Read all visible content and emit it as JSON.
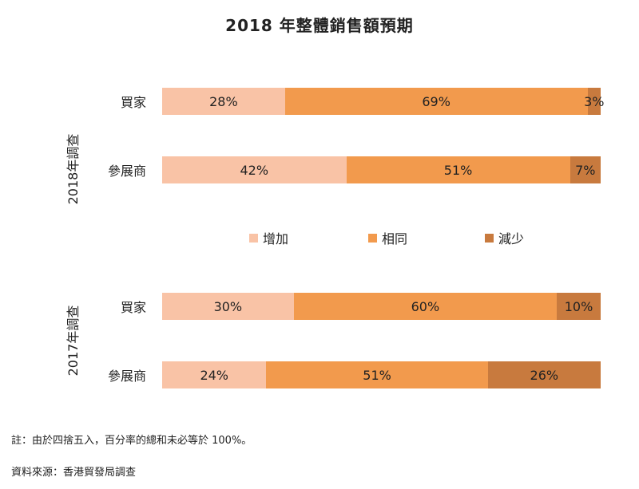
{
  "chart_data": {
    "type": "bar",
    "orientation": "horizontal",
    "stacked": true,
    "title": "2018 年整體銷售額預期",
    "legend_position": "middle",
    "groups": [
      {
        "label": "2018年調查",
        "rows": [
          {
            "category": "買家",
            "values": [
              28,
              69,
              3
            ],
            "labels": [
              "28%",
              "69%",
              "3%"
            ]
          },
          {
            "category": "參展商",
            "values": [
              42,
              51,
              7
            ],
            "labels": [
              "42%",
              "51%",
              "7%"
            ]
          }
        ]
      },
      {
        "label": "2017年調查",
        "rows": [
          {
            "category": "買家",
            "values": [
              30,
              60,
              10
            ],
            "labels": [
              "30%",
              "60%",
              "10%"
            ]
          },
          {
            "category": "參展商",
            "values": [
              24,
              51,
              26
            ],
            "labels": [
              "24%",
              "51%",
              "26%"
            ]
          }
        ]
      }
    ],
    "series": [
      {
        "name": "增加",
        "color": "#F9C3A6"
      },
      {
        "name": "相同",
        "color": "#F29A4D"
      },
      {
        "name": "減少",
        "color": "#C87A3E"
      }
    ]
  },
  "notes": {
    "footnote": "註：由於四捨五入，百分率的總和未必等於 100%。",
    "source": "資料來源：香港貿發局調查"
  }
}
